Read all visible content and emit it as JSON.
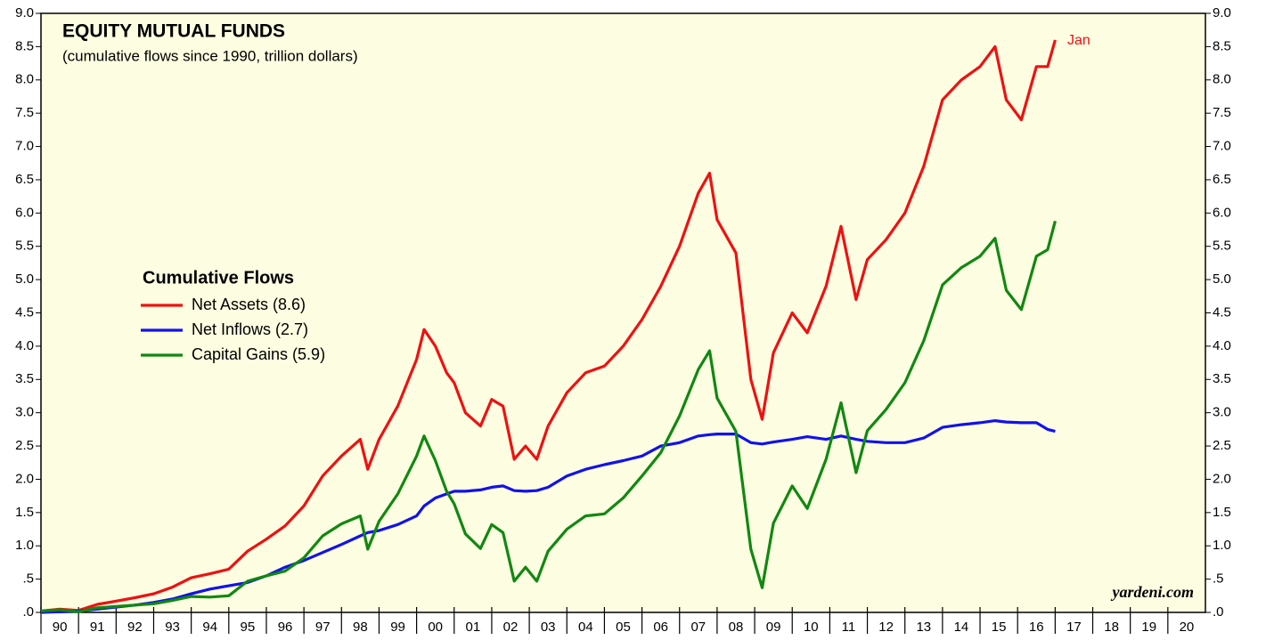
{
  "chart_data": {
    "type": "line",
    "title": "EQUITY MUTUAL FUNDS",
    "subtitle": "(cumulative flows since 1990, trillion dollars)",
    "legend_title": "Cumulative Flows",
    "annotation": "Jan",
    "source": "yardeni.com",
    "x": [
      1990.0,
      1990.5,
      1991.0,
      1991.5,
      1992.0,
      1992.5,
      1993.0,
      1993.5,
      1994.0,
      1994.5,
      1995.0,
      1995.5,
      1996.0,
      1996.5,
      1997.0,
      1997.5,
      1998.0,
      1998.5,
      1998.7,
      1999.0,
      1999.5,
      2000.0,
      2000.2,
      2000.5,
      2000.8,
      2001.0,
      2001.3,
      2001.7,
      2002.0,
      2002.3,
      2002.6,
      2002.9,
      2003.2,
      2003.5,
      2004.0,
      2004.5,
      2005.0,
      2005.5,
      2006.0,
      2006.5,
      2007.0,
      2007.5,
      2007.8,
      2008.0,
      2008.5,
      2008.9,
      2009.2,
      2009.5,
      2010.0,
      2010.4,
      2010.9,
      2011.3,
      2011.7,
      2012.0,
      2012.5,
      2013.0,
      2013.5,
      2014.0,
      2014.5,
      2015.0,
      2015.4,
      2015.7,
      2016.1,
      2016.5,
      2016.8,
      2017.0
    ],
    "series": [
      {
        "name": "Net Assets (8.6)",
        "color": "#ee1111",
        "values": [
          0.02,
          0.05,
          0.03,
          0.12,
          0.17,
          0.22,
          0.28,
          0.38,
          0.52,
          0.58,
          0.65,
          0.92,
          1.1,
          1.3,
          1.6,
          2.05,
          2.35,
          2.6,
          2.15,
          2.6,
          3.1,
          3.8,
          4.25,
          4.0,
          3.6,
          3.45,
          3.0,
          2.8,
          3.2,
          3.1,
          2.3,
          2.5,
          2.3,
          2.8,
          3.3,
          3.6,
          3.7,
          4.0,
          4.4,
          4.9,
          5.5,
          6.3,
          6.6,
          5.9,
          5.4,
          3.5,
          2.9,
          3.9,
          4.5,
          4.2,
          4.9,
          5.8,
          4.7,
          5.3,
          5.6,
          6.0,
          6.7,
          7.7,
          8.0,
          8.2,
          8.5,
          7.7,
          7.4,
          8.2,
          8.2,
          8.6
        ]
      },
      {
        "name": "Net Inflows (2.7)",
        "color": "#1111ee",
        "values": [
          0.0,
          0.01,
          0.02,
          0.05,
          0.08,
          0.11,
          0.15,
          0.2,
          0.28,
          0.35,
          0.4,
          0.45,
          0.55,
          0.68,
          0.78,
          0.9,
          1.02,
          1.15,
          1.2,
          1.23,
          1.32,
          1.45,
          1.6,
          1.72,
          1.78,
          1.82,
          1.82,
          1.84,
          1.88,
          1.9,
          1.83,
          1.82,
          1.83,
          1.88,
          2.05,
          2.15,
          2.22,
          2.28,
          2.35,
          2.5,
          2.55,
          2.65,
          2.67,
          2.68,
          2.68,
          2.55,
          2.53,
          2.56,
          2.6,
          2.64,
          2.6,
          2.65,
          2.6,
          2.57,
          2.55,
          2.55,
          2.62,
          2.78,
          2.82,
          2.85,
          2.88,
          2.86,
          2.85,
          2.85,
          2.75,
          2.72
        ]
      },
      {
        "name": "Capital Gains (5.9)",
        "color": "#118811",
        "values": [
          0.02,
          0.04,
          0.01,
          0.07,
          0.09,
          0.11,
          0.13,
          0.18,
          0.24,
          0.23,
          0.25,
          0.47,
          0.55,
          0.62,
          0.82,
          1.15,
          1.33,
          1.45,
          0.95,
          1.37,
          1.78,
          2.35,
          2.65,
          2.28,
          1.82,
          1.63,
          1.18,
          0.96,
          1.32,
          1.2,
          0.47,
          0.68,
          0.47,
          0.92,
          1.25,
          1.45,
          1.48,
          1.72,
          2.05,
          2.4,
          2.95,
          3.65,
          3.93,
          3.22,
          2.72,
          0.95,
          0.37,
          1.34,
          1.9,
          1.56,
          2.3,
          3.15,
          2.1,
          2.73,
          3.05,
          3.45,
          4.08,
          4.92,
          5.18,
          5.35,
          5.62,
          4.84,
          4.55,
          5.35,
          5.45,
          5.88
        ]
      }
    ],
    "xlim": [
      1990,
      2021
    ],
    "xticks": [
      {
        "value": 1990.5,
        "label": "90"
      },
      {
        "value": 1991.5,
        "label": "91"
      },
      {
        "value": 1992.5,
        "label": "92"
      },
      {
        "value": 1993.5,
        "label": "93"
      },
      {
        "value": 1994.5,
        "label": "94"
      },
      {
        "value": 1995.5,
        "label": "95"
      },
      {
        "value": 1996.5,
        "label": "96"
      },
      {
        "value": 1997.5,
        "label": "97"
      },
      {
        "value": 1998.5,
        "label": "98"
      },
      {
        "value": 1999.5,
        "label": "99"
      },
      {
        "value": 2000.5,
        "label": "00"
      },
      {
        "value": 2001.5,
        "label": "01"
      },
      {
        "value": 2002.5,
        "label": "02"
      },
      {
        "value": 2003.5,
        "label": "03"
      },
      {
        "value": 2004.5,
        "label": "04"
      },
      {
        "value": 2005.5,
        "label": "05"
      },
      {
        "value": 2006.5,
        "label": "06"
      },
      {
        "value": 2007.5,
        "label": "07"
      },
      {
        "value": 2008.5,
        "label": "08"
      },
      {
        "value": 2009.5,
        "label": "09"
      },
      {
        "value": 2010.5,
        "label": "10"
      },
      {
        "value": 2011.5,
        "label": "11"
      },
      {
        "value": 2012.5,
        "label": "12"
      },
      {
        "value": 2013.5,
        "label": "13"
      },
      {
        "value": 2014.5,
        "label": "14"
      },
      {
        "value": 2015.5,
        "label": "15"
      },
      {
        "value": 2016.5,
        "label": "16"
      },
      {
        "value": 2017.5,
        "label": "17"
      },
      {
        "value": 2018.5,
        "label": "18"
      },
      {
        "value": 2019.5,
        "label": "19"
      },
      {
        "value": 2020.5,
        "label": "20"
      }
    ],
    "ylim": [
      0,
      9
    ],
    "yticks": [
      {
        "value": 0,
        "label": ".0"
      },
      {
        "value": 0.5,
        "label": ".5"
      },
      {
        "value": 1,
        "label": "1.0"
      },
      {
        "value": 1.5,
        "label": "1.5"
      },
      {
        "value": 2,
        "label": "2.0"
      },
      {
        "value": 2.5,
        "label": "2.5"
      },
      {
        "value": 3,
        "label": "3.0"
      },
      {
        "value": 3.5,
        "label": "3.5"
      },
      {
        "value": 4,
        "label": "4.0"
      },
      {
        "value": 4.5,
        "label": "4.5"
      },
      {
        "value": 5,
        "label": "5.0"
      },
      {
        "value": 5.5,
        "label": "5.5"
      },
      {
        "value": 6,
        "label": "6.0"
      },
      {
        "value": 6.5,
        "label": "6.5"
      },
      {
        "value": 7,
        "label": "7.0"
      },
      {
        "value": 7.5,
        "label": "7.5"
      },
      {
        "value": 8,
        "label": "8.0"
      },
      {
        "value": 8.5,
        "label": "8.5"
      },
      {
        "value": 9,
        "label": "9.0"
      }
    ],
    "grid": false,
    "background": "#fdfde1"
  }
}
